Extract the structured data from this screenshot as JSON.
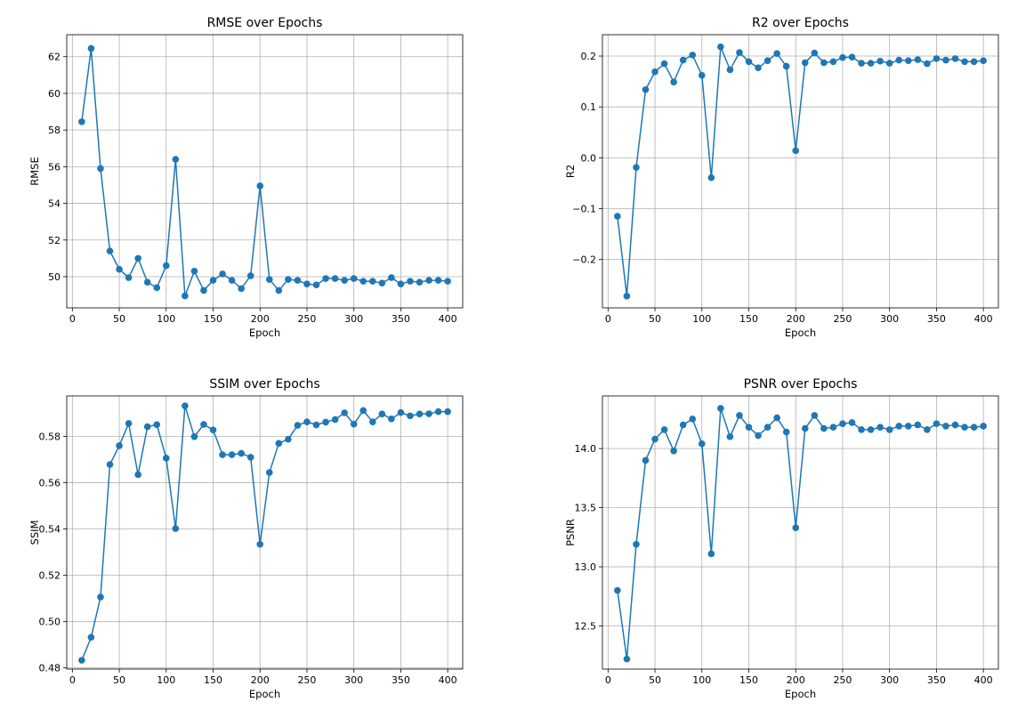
{
  "style": {
    "line_color": "#1f77b4",
    "grid_color": "#b0b0b0",
    "axes_color": "#000000"
  },
  "chart_data": [
    {
      "type": "line",
      "title": "RMSE over Epochs",
      "xlabel": "Epoch",
      "ylabel": "RMSE",
      "xlim": [
        -6,
        416
      ],
      "ylim": [
        48.3,
        63.2
      ],
      "xticks": [
        0,
        50,
        100,
        150,
        200,
        250,
        300,
        350,
        400
      ],
      "xtick_labels": [
        "0",
        "50",
        "100",
        "150",
        "200",
        "250",
        "300",
        "350",
        "400"
      ],
      "yticks": [
        50,
        52,
        54,
        56,
        58,
        60,
        62
      ],
      "ytick_labels": [
        "50",
        "52",
        "54",
        "56",
        "58",
        "60",
        "62"
      ],
      "grid": true,
      "marker": "circle",
      "x": [
        10,
        20,
        30,
        40,
        50,
        60,
        70,
        80,
        90,
        100,
        110,
        120,
        130,
        140,
        150,
        160,
        170,
        180,
        190,
        200,
        210,
        220,
        230,
        240,
        250,
        260,
        270,
        280,
        290,
        300,
        310,
        320,
        330,
        340,
        350,
        360,
        370,
        380,
        390,
        400
      ],
      "y": [
        58.45,
        62.45,
        55.9,
        51.4,
        50.4,
        49.95,
        51.0,
        49.7,
        49.4,
        50.6,
        56.4,
        48.95,
        50.3,
        49.25,
        49.8,
        50.15,
        49.8,
        49.35,
        50.05,
        54.95,
        49.85,
        49.25,
        49.85,
        49.8,
        49.6,
        49.55,
        49.9,
        49.9,
        49.8,
        49.9,
        49.75,
        49.75,
        49.65,
        49.95,
        49.6,
        49.75,
        49.7,
        49.8,
        49.8,
        49.75
      ]
    },
    {
      "type": "line",
      "title": "R2 over Epochs",
      "xlabel": "Epoch",
      "ylabel": "R2",
      "xlim": [
        -6,
        416
      ],
      "ylim": [
        -0.295,
        0.242
      ],
      "xticks": [
        0,
        50,
        100,
        150,
        200,
        250,
        300,
        350,
        400
      ],
      "xtick_labels": [
        "0",
        "50",
        "100",
        "150",
        "200",
        "250",
        "300",
        "350",
        "400"
      ],
      "yticks": [
        -0.2,
        -0.1,
        0.0,
        0.1,
        0.2
      ],
      "ytick_labels": [
        "−0.2",
        "−0.1",
        "0.0",
        "0.1",
        "0.2"
      ],
      "grid": true,
      "marker": "circle",
      "x": [
        10,
        20,
        30,
        40,
        50,
        60,
        70,
        80,
        90,
        100,
        110,
        120,
        130,
        140,
        150,
        160,
        170,
        180,
        190,
        200,
        210,
        220,
        230,
        240,
        250,
        260,
        270,
        280,
        290,
        300,
        310,
        320,
        330,
        340,
        350,
        360,
        370,
        380,
        390,
        400
      ],
      "y": [
        -0.115,
        -0.272,
        -0.019,
        0.134,
        0.169,
        0.185,
        0.149,
        0.192,
        0.202,
        0.162,
        -0.039,
        0.218,
        0.173,
        0.207,
        0.189,
        0.177,
        0.191,
        0.205,
        0.18,
        0.014,
        0.187,
        0.206,
        0.187,
        0.189,
        0.197,
        0.198,
        0.186,
        0.186,
        0.19,
        0.186,
        0.192,
        0.191,
        0.193,
        0.185,
        0.195,
        0.192,
        0.195,
        0.189,
        0.189,
        0.191
      ]
    },
    {
      "type": "line",
      "title": "SSIM over Epochs",
      "xlabel": "Epoch",
      "ylabel": "SSIM",
      "xlim": [
        -6,
        416
      ],
      "ylim": [
        0.4795,
        0.5975
      ],
      "xticks": [
        0,
        50,
        100,
        150,
        200,
        250,
        300,
        350,
        400
      ],
      "xtick_labels": [
        "0",
        "50",
        "100",
        "150",
        "200",
        "250",
        "300",
        "350",
        "400"
      ],
      "yticks": [
        0.48,
        0.5,
        0.52,
        0.54,
        0.56,
        0.58
      ],
      "ytick_labels": [
        "0.48",
        "0.50",
        "0.52",
        "0.54",
        "0.56",
        "0.58"
      ],
      "grid": true,
      "marker": "circle",
      "x": [
        10,
        20,
        30,
        40,
        50,
        60,
        70,
        80,
        90,
        100,
        110,
        120,
        130,
        140,
        150,
        160,
        170,
        180,
        190,
        200,
        210,
        220,
        230,
        240,
        250,
        260,
        270,
        280,
        290,
        300,
        310,
        320,
        330,
        340,
        350,
        360,
        370,
        380,
        390,
        400
      ],
      "y": [
        0.4833,
        0.4932,
        0.5106,
        0.5679,
        0.576,
        0.5856,
        0.5635,
        0.5842,
        0.5851,
        0.5706,
        0.5402,
        0.5932,
        0.5799,
        0.5852,
        0.5828,
        0.5721,
        0.5721,
        0.5727,
        0.571,
        0.5334,
        0.5644,
        0.577,
        0.5788,
        0.5848,
        0.5863,
        0.585,
        0.5862,
        0.5873,
        0.5902,
        0.5853,
        0.5912,
        0.5863,
        0.5897,
        0.5876,
        0.5903,
        0.5889,
        0.5897,
        0.5898,
        0.5907,
        0.5907
      ]
    },
    {
      "type": "line",
      "title": "PSNR over Epochs",
      "xlabel": "Epoch",
      "ylabel": "PSNR",
      "xlim": [
        -6,
        416
      ],
      "ylim": [
        12.135,
        14.445
      ],
      "xticks": [
        0,
        50,
        100,
        150,
        200,
        250,
        300,
        350,
        400
      ],
      "xtick_labels": [
        "0",
        "50",
        "100",
        "150",
        "200",
        "250",
        "300",
        "350",
        "400"
      ],
      "yticks": [
        12.5,
        13.0,
        13.5,
        14.0
      ],
      "ytick_labels": [
        "12.5",
        "13.0",
        "13.5",
        "14.0"
      ],
      "grid": true,
      "marker": "circle",
      "x": [
        10,
        20,
        30,
        40,
        50,
        60,
        70,
        80,
        90,
        100,
        110,
        120,
        130,
        140,
        150,
        160,
        170,
        180,
        190,
        200,
        210,
        220,
        230,
        240,
        250,
        260,
        270,
        280,
        290,
        300,
        310,
        320,
        330,
        340,
        350,
        360,
        370,
        380,
        390,
        400
      ],
      "y": [
        12.8,
        12.22,
        13.19,
        13.9,
        14.08,
        14.16,
        13.98,
        14.2,
        14.25,
        14.04,
        13.11,
        14.34,
        14.1,
        14.28,
        14.18,
        14.11,
        14.18,
        14.26,
        14.14,
        13.33,
        14.17,
        14.28,
        14.17,
        14.18,
        14.21,
        14.22,
        14.16,
        14.16,
        14.18,
        14.16,
        14.19,
        14.19,
        14.2,
        14.16,
        14.21,
        14.19,
        14.2,
        14.18,
        14.18,
        14.19
      ]
    }
  ]
}
